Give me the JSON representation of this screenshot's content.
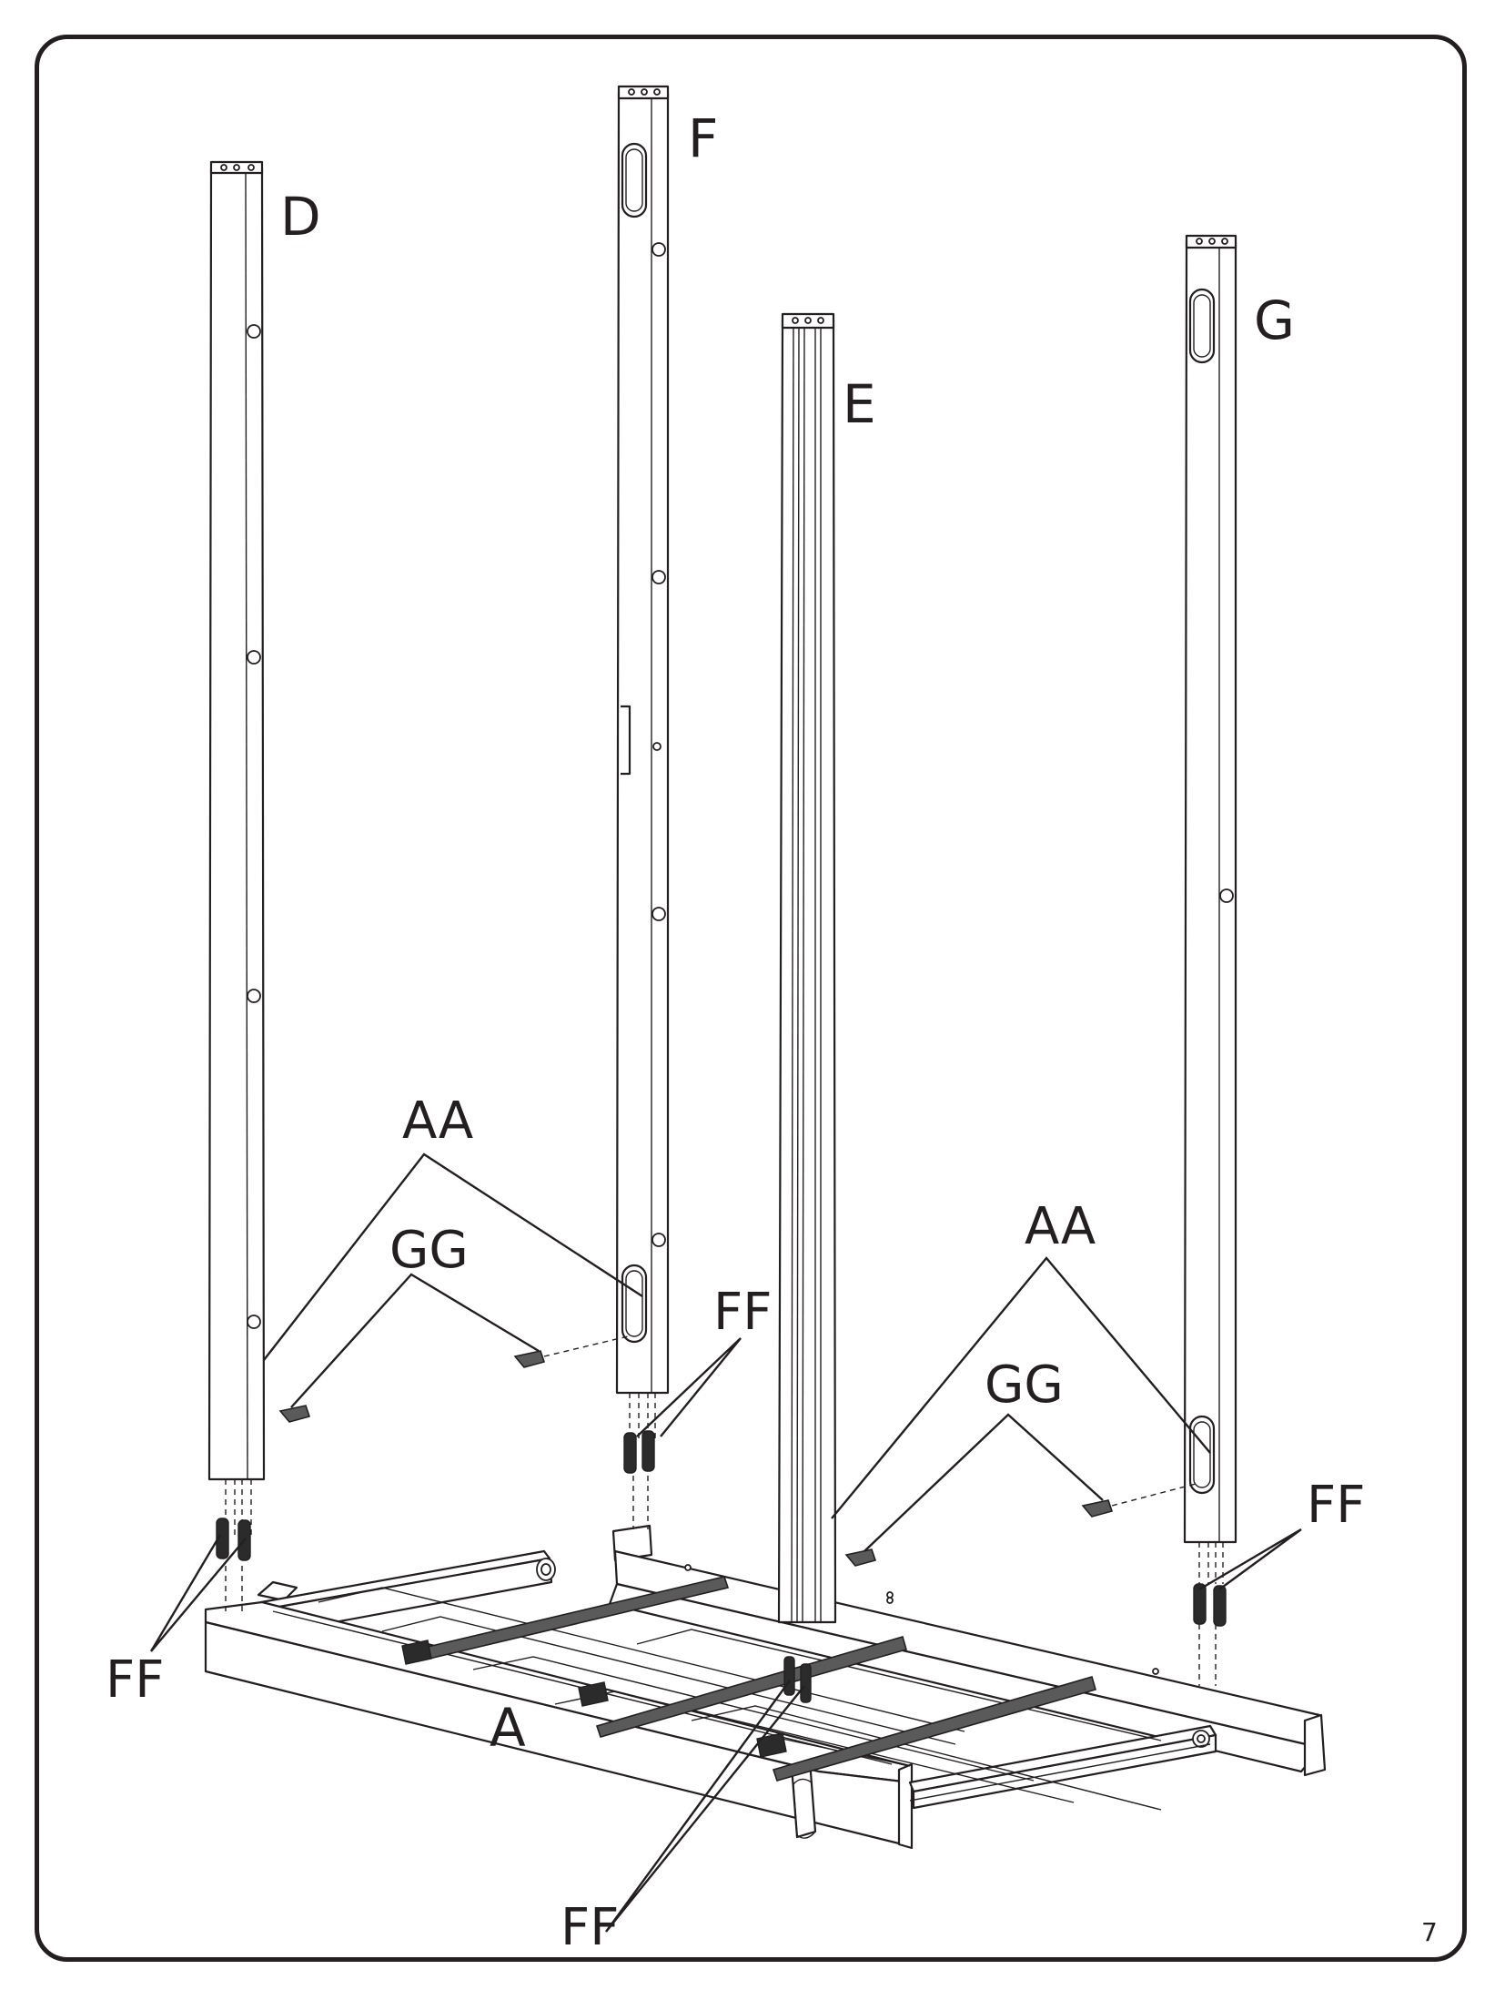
{
  "parts": {
    "post_d": "D",
    "post_f": "F",
    "post_e": "E",
    "post_g": "G",
    "base_a": "A"
  },
  "hardware": {
    "aa_left": "AA",
    "aa_right": "AA",
    "gg_left": "GG",
    "gg_right": "GG",
    "ff_left": "FF",
    "ff_center": "FF",
    "ff_right": "FF",
    "ff_bottom": "FF"
  },
  "page_number": "7",
  "colors": {
    "ink": "#231f20",
    "hardware_fill": "#5a5a5a"
  }
}
